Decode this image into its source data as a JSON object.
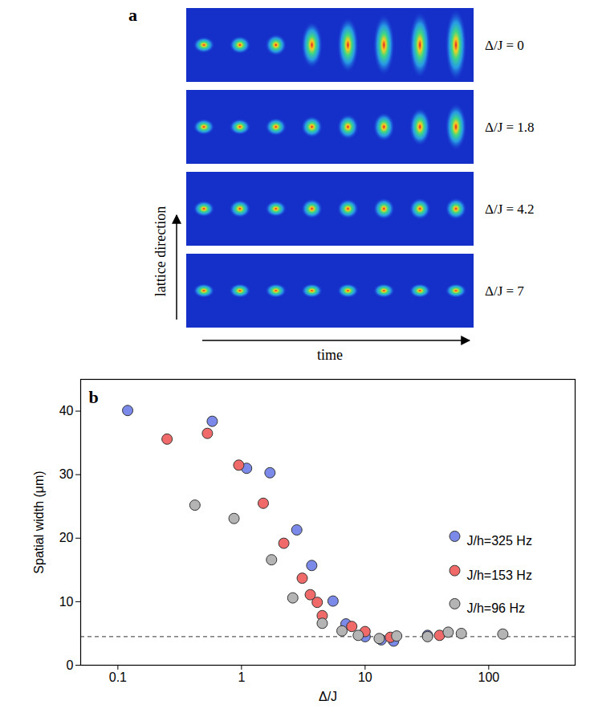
{
  "panel_a": {
    "letter": "a",
    "rows": [
      "Δ/J = 0",
      "Δ/J = 1.8",
      "Δ/J = 4.2",
      "Δ/J = 7"
    ],
    "vertical_arrow_label": "lattice direction",
    "horizontal_arrow_label": "time"
  },
  "chart_data": {
    "type": "scatter",
    "title": "b",
    "x_label": "Δ/J",
    "y_label": "Spatial width (μm)",
    "log": "x",
    "xlim": [
      0.05,
      500
    ],
    "xticks": [
      0.1,
      1,
      10,
      100
    ],
    "ylim": [
      0,
      45
    ],
    "yticks": [
      0,
      10,
      20,
      30,
      40
    ],
    "legend": "right",
    "reference_line": {
      "y": 4.5,
      "line_style": "dashed"
    },
    "series": [
      {
        "name": "J/h=325 Hz",
        "color": "#7b8ae8",
        "marker": "circle",
        "x": [
          0.12,
          0.58,
          1.1,
          1.7,
          2.8,
          3.7,
          5.5,
          7.0,
          10,
          13.5,
          17,
          32
        ],
        "values": [
          40.1,
          38.4,
          31,
          30.3,
          21.3,
          15.7,
          10.1,
          6.5,
          4.5,
          4.0,
          3.8,
          4.7
        ]
      },
      {
        "name": "J/h=153 Hz",
        "color": "#f06a6a",
        "marker": "circle",
        "x": [
          0.25,
          0.53,
          0.95,
          1.5,
          2.2,
          3.1,
          3.6,
          4.1,
          4.5,
          7.8,
          10,
          16,
          40
        ],
        "values": [
          35.6,
          36.5,
          31.5,
          25.5,
          19.2,
          13.7,
          11.1,
          9.9,
          7.8,
          6.1,
          5.3,
          4.4,
          4.7
        ]
      },
      {
        "name": "J/h=96 Hz",
        "color": "#b4b4b4",
        "marker": "circle",
        "x": [
          0.42,
          0.87,
          1.75,
          2.6,
          4.5,
          6.5,
          8.8,
          13,
          18,
          32,
          47,
          60,
          130
        ],
        "values": [
          25.2,
          23.1,
          16.6,
          10.6,
          6.6,
          5.4,
          4.7,
          4.2,
          4.6,
          4.5,
          5.2,
          5.0,
          4.9
        ]
      }
    ]
  }
}
